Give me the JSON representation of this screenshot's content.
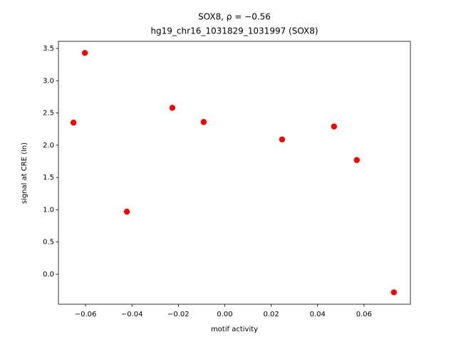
{
  "chart_data": {
    "type": "scatter",
    "title": "SOX8, ρ = −0.56",
    "subtitle": "hg19_chr16_1031829_1031997 (SOX8)",
    "x_label": "motif activity",
    "y_label": "signal at CRE (ln)",
    "color": "#ff0000",
    "x": [
      -0.0652,
      -0.0603,
      -0.0422,
      -0.0226,
      -0.0091,
      0.0247,
      0.0471,
      0.0569,
      0.0729
    ],
    "values": [
      2.35,
      3.43,
      0.97,
      2.58,
      2.36,
      2.09,
      2.29,
      1.77,
      -0.28
    ],
    "xlim": [
      -0.0717,
      0.08
    ],
    "ylim": [
      -0.464,
      3.61
    ],
    "xticks": [
      {
        "value": -0.06,
        "label": "−0.06"
      },
      {
        "value": -0.04,
        "label": "−0.04"
      },
      {
        "value": -0.02,
        "label": "−0.02"
      },
      {
        "value": 0,
        "label": "0.00"
      },
      0.02,
      0.04,
      0.06
    ],
    "yticks": [
      {
        "value": 0,
        "label": "0.0"
      },
      0.5,
      {
        "value": 1,
        "label": "1.0"
      },
      1.5,
      {
        "value": 2,
        "label": "2.0"
      },
      2.5,
      {
        "value": 3,
        "label": "3.0"
      },
      3.5
    ]
  }
}
